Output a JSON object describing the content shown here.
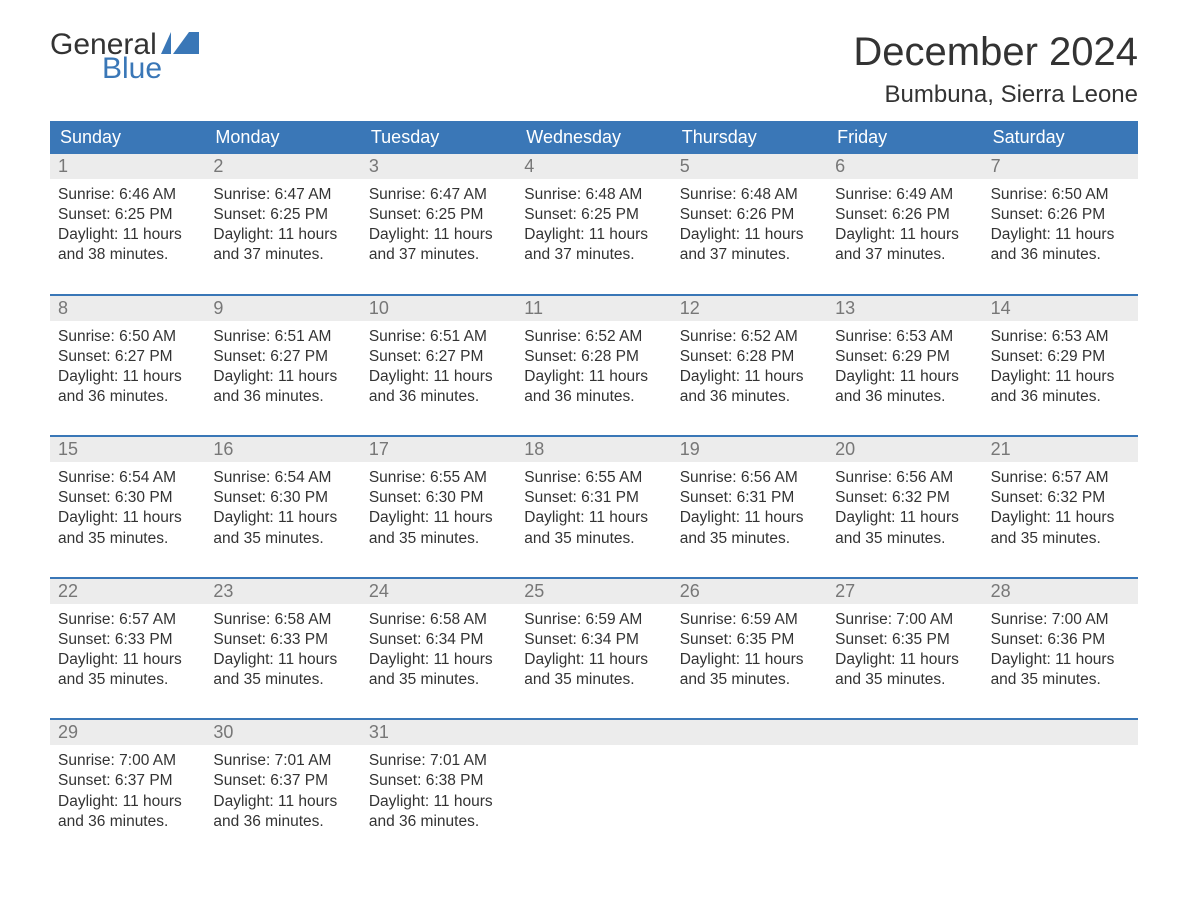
{
  "logo": {
    "text_general": "General",
    "text_blue": "Blue",
    "flag_color": "#3a77b7"
  },
  "title": {
    "month": "December 2024",
    "location": "Bumbuna, Sierra Leone"
  },
  "colors": {
    "header_bg": "#3a77b7",
    "header_text": "#ffffff",
    "daynum_bg": "#ececec",
    "daynum_text": "#777777",
    "body_text": "#333333",
    "week_border": "#3a77b7",
    "background": "#ffffff"
  },
  "typography": {
    "month_fontsize": 40,
    "location_fontsize": 24,
    "dayheader_fontsize": 18,
    "daynum_fontsize": 18,
    "cell_fontsize": 15.5,
    "logo_fontsize": 30
  },
  "day_headers": [
    "Sunday",
    "Monday",
    "Tuesday",
    "Wednesday",
    "Thursday",
    "Friday",
    "Saturday"
  ],
  "weeks": [
    [
      {
        "n": "1",
        "sr": "Sunrise: 6:46 AM",
        "ss": "Sunset: 6:25 PM",
        "dl": "Daylight: 11 hours and 38 minutes."
      },
      {
        "n": "2",
        "sr": "Sunrise: 6:47 AM",
        "ss": "Sunset: 6:25 PM",
        "dl": "Daylight: 11 hours and 37 minutes."
      },
      {
        "n": "3",
        "sr": "Sunrise: 6:47 AM",
        "ss": "Sunset: 6:25 PM",
        "dl": "Daylight: 11 hours and 37 minutes."
      },
      {
        "n": "4",
        "sr": "Sunrise: 6:48 AM",
        "ss": "Sunset: 6:25 PM",
        "dl": "Daylight: 11 hours and 37 minutes."
      },
      {
        "n": "5",
        "sr": "Sunrise: 6:48 AM",
        "ss": "Sunset: 6:26 PM",
        "dl": "Daylight: 11 hours and 37 minutes."
      },
      {
        "n": "6",
        "sr": "Sunrise: 6:49 AM",
        "ss": "Sunset: 6:26 PM",
        "dl": "Daylight: 11 hours and 37 minutes."
      },
      {
        "n": "7",
        "sr": "Sunrise: 6:50 AM",
        "ss": "Sunset: 6:26 PM",
        "dl": "Daylight: 11 hours and 36 minutes."
      }
    ],
    [
      {
        "n": "8",
        "sr": "Sunrise: 6:50 AM",
        "ss": "Sunset: 6:27 PM",
        "dl": "Daylight: 11 hours and 36 minutes."
      },
      {
        "n": "9",
        "sr": "Sunrise: 6:51 AM",
        "ss": "Sunset: 6:27 PM",
        "dl": "Daylight: 11 hours and 36 minutes."
      },
      {
        "n": "10",
        "sr": "Sunrise: 6:51 AM",
        "ss": "Sunset: 6:27 PM",
        "dl": "Daylight: 11 hours and 36 minutes."
      },
      {
        "n": "11",
        "sr": "Sunrise: 6:52 AM",
        "ss": "Sunset: 6:28 PM",
        "dl": "Daylight: 11 hours and 36 minutes."
      },
      {
        "n": "12",
        "sr": "Sunrise: 6:52 AM",
        "ss": "Sunset: 6:28 PM",
        "dl": "Daylight: 11 hours and 36 minutes."
      },
      {
        "n": "13",
        "sr": "Sunrise: 6:53 AM",
        "ss": "Sunset: 6:29 PM",
        "dl": "Daylight: 11 hours and 36 minutes."
      },
      {
        "n": "14",
        "sr": "Sunrise: 6:53 AM",
        "ss": "Sunset: 6:29 PM",
        "dl": "Daylight: 11 hours and 36 minutes."
      }
    ],
    [
      {
        "n": "15",
        "sr": "Sunrise: 6:54 AM",
        "ss": "Sunset: 6:30 PM",
        "dl": "Daylight: 11 hours and 35 minutes."
      },
      {
        "n": "16",
        "sr": "Sunrise: 6:54 AM",
        "ss": "Sunset: 6:30 PM",
        "dl": "Daylight: 11 hours and 35 minutes."
      },
      {
        "n": "17",
        "sr": "Sunrise: 6:55 AM",
        "ss": "Sunset: 6:30 PM",
        "dl": "Daylight: 11 hours and 35 minutes."
      },
      {
        "n": "18",
        "sr": "Sunrise: 6:55 AM",
        "ss": "Sunset: 6:31 PM",
        "dl": "Daylight: 11 hours and 35 minutes."
      },
      {
        "n": "19",
        "sr": "Sunrise: 6:56 AM",
        "ss": "Sunset: 6:31 PM",
        "dl": "Daylight: 11 hours and 35 minutes."
      },
      {
        "n": "20",
        "sr": "Sunrise: 6:56 AM",
        "ss": "Sunset: 6:32 PM",
        "dl": "Daylight: 11 hours and 35 minutes."
      },
      {
        "n": "21",
        "sr": "Sunrise: 6:57 AM",
        "ss": "Sunset: 6:32 PM",
        "dl": "Daylight: 11 hours and 35 minutes."
      }
    ],
    [
      {
        "n": "22",
        "sr": "Sunrise: 6:57 AM",
        "ss": "Sunset: 6:33 PM",
        "dl": "Daylight: 11 hours and 35 minutes."
      },
      {
        "n": "23",
        "sr": "Sunrise: 6:58 AM",
        "ss": "Sunset: 6:33 PM",
        "dl": "Daylight: 11 hours and 35 minutes."
      },
      {
        "n": "24",
        "sr": "Sunrise: 6:58 AM",
        "ss": "Sunset: 6:34 PM",
        "dl": "Daylight: 11 hours and 35 minutes."
      },
      {
        "n": "25",
        "sr": "Sunrise: 6:59 AM",
        "ss": "Sunset: 6:34 PM",
        "dl": "Daylight: 11 hours and 35 minutes."
      },
      {
        "n": "26",
        "sr": "Sunrise: 6:59 AM",
        "ss": "Sunset: 6:35 PM",
        "dl": "Daylight: 11 hours and 35 minutes."
      },
      {
        "n": "27",
        "sr": "Sunrise: 7:00 AM",
        "ss": "Sunset: 6:35 PM",
        "dl": "Daylight: 11 hours and 35 minutes."
      },
      {
        "n": "28",
        "sr": "Sunrise: 7:00 AM",
        "ss": "Sunset: 6:36 PM",
        "dl": "Daylight: 11 hours and 35 minutes."
      }
    ],
    [
      {
        "n": "29",
        "sr": "Sunrise: 7:00 AM",
        "ss": "Sunset: 6:37 PM",
        "dl": "Daylight: 11 hours and 36 minutes."
      },
      {
        "n": "30",
        "sr": "Sunrise: 7:01 AM",
        "ss": "Sunset: 6:37 PM",
        "dl": "Daylight: 11 hours and 36 minutes."
      },
      {
        "n": "31",
        "sr": "Sunrise: 7:01 AM",
        "ss": "Sunset: 6:38 PM",
        "dl": "Daylight: 11 hours and 36 minutes."
      },
      null,
      null,
      null,
      null
    ]
  ]
}
